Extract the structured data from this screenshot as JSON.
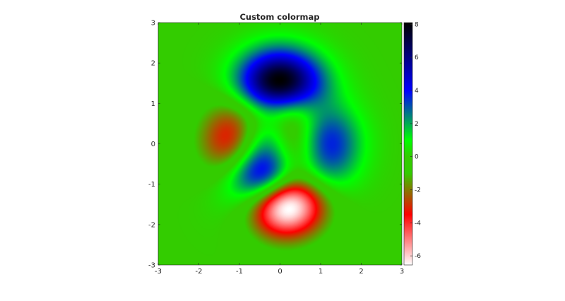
{
  "chart_data": {
    "type": "heatmap",
    "title": "Custom colormap",
    "function": "peaks",
    "x": {
      "range": [
        -3,
        3
      ],
      "ticks": [
        "-3",
        "-2",
        "-1",
        "0",
        "1",
        "2",
        "3"
      ]
    },
    "y": {
      "range": [
        -3,
        3
      ],
      "ticks": [
        "-3",
        "-2",
        "-1",
        "0",
        "1",
        "2",
        "3"
      ]
    },
    "colorbar": {
      "range": [
        -6.55,
        8.1
      ],
      "ticks": [
        "-6",
        "-4",
        "-2",
        "0",
        "2",
        "4",
        "6",
        "8"
      ],
      "colormap_stops": [
        {
          "value": -6.55,
          "color": "#ffffff"
        },
        {
          "value": -3.5,
          "color": "#ff0000"
        },
        {
          "value": -1.0,
          "color": "#33cc00"
        },
        {
          "value": 0.0,
          "color": "#33cc00"
        },
        {
          "value": 1.0,
          "color": "#00ff00"
        },
        {
          "value": 4.0,
          "color": "#0000ff"
        },
        {
          "value": 8.1,
          "color": "#000000"
        }
      ]
    },
    "background_color": "#33cc00"
  }
}
